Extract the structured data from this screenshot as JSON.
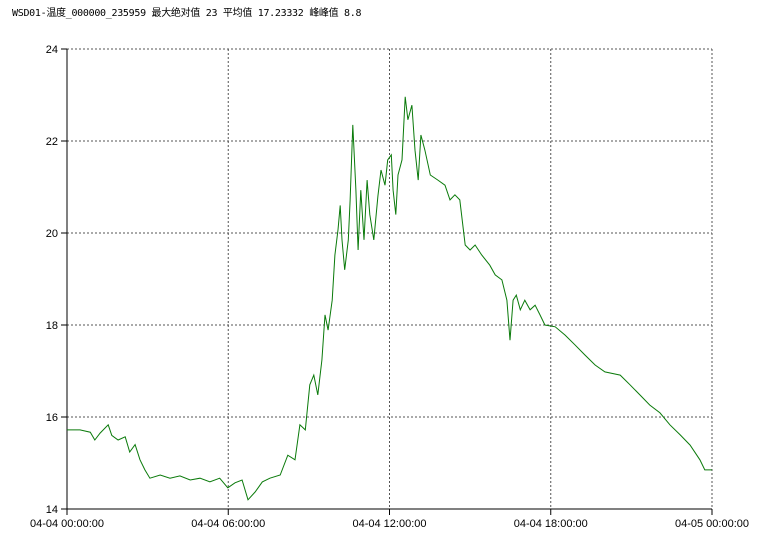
{
  "chart_data": {
    "type": "line",
    "title": "WSD01-温度_000000_235959 最大绝对值 23 平均值 17.23332 峰峰值 8.8",
    "date": "04-04",
    "xlabel": "",
    "ylabel": "",
    "ylim": [
      14,
      24
    ],
    "xlim": [
      "04-04 00:00:00",
      "04-05 00:00:00"
    ],
    "yticks": [
      "24",
      "22",
      "20",
      "18",
      "16",
      "14"
    ],
    "xticks": [
      "04-04 00:00:00",
      "04-04 06:00:00",
      "04-04 12:00:00",
      "04-04 18:00:00",
      "04-05 00:00:00"
    ],
    "grid": true,
    "line_color": "#0a7a0a",
    "series": [
      {
        "x": [
          "00:00",
          "00:29",
          "00:52",
          "01:02",
          "01:14",
          "01:32",
          "01:40",
          "01:54",
          "02:10",
          "02:20",
          "02:32",
          "02:43",
          "02:54",
          "03:05",
          "03:28",
          "03:50",
          "04:12",
          "04:35",
          "04:57",
          "05:19",
          "05:41",
          "05:59",
          "06:15",
          "06:31",
          "06:44",
          "07:00",
          "07:16",
          "07:33",
          "07:56",
          "08:13",
          "08:29",
          "08:40",
          "08:52",
          "09:02",
          "09:11",
          "09:20",
          "09:29",
          "09:36",
          "09:43",
          "09:52",
          "09:58",
          "10:05",
          "10:10",
          "10:14",
          "10:20",
          "10:28",
          "10:32",
          "10:38",
          "10:45",
          "10:50",
          "10:56",
          "11:03",
          "11:10",
          "11:16",
          "11:25",
          "11:34",
          "11:41",
          "11:50",
          "11:56",
          "12:04",
          "12:08",
          "12:14",
          "12:19",
          "12:28",
          "12:35",
          "12:41",
          "12:50",
          "12:57",
          "13:04",
          "13:10",
          "13:19",
          "13:31",
          "13:48",
          "14:04",
          "14:15",
          "14:26",
          "14:37",
          "14:49",
          "15:00",
          "15:11",
          "15:26",
          "15:44",
          "15:56",
          "16:11",
          "16:22",
          "16:29",
          "16:36",
          "16:43",
          "16:52",
          "17:02",
          "17:14",
          "17:25",
          "17:36",
          "17:47",
          "18:10",
          "18:32",
          "18:54",
          "19:16",
          "19:39",
          "20:01",
          "20:35",
          "20:57",
          "21:19",
          "21:41",
          "22:04",
          "22:26",
          "22:49",
          "23:11",
          "23:33",
          "23:44",
          "23:59"
        ],
        "y": [
          15.72,
          15.72,
          15.67,
          15.5,
          15.65,
          15.83,
          15.6,
          15.5,
          15.57,
          15.24,
          15.4,
          15.07,
          14.85,
          14.67,
          14.74,
          14.67,
          14.72,
          14.63,
          14.67,
          14.59,
          14.67,
          14.46,
          14.57,
          14.63,
          14.2,
          14.37,
          14.59,
          14.67,
          14.74,
          15.17,
          15.07,
          15.83,
          15.72,
          16.7,
          16.91,
          16.48,
          17.24,
          18.22,
          17.89,
          18.54,
          19.52,
          20.07,
          20.6,
          19.85,
          19.2,
          19.85,
          20.7,
          22.35,
          20.93,
          19.63,
          20.93,
          19.85,
          21.15,
          20.4,
          19.85,
          20.8,
          21.37,
          21.04,
          21.59,
          21.7,
          20.93,
          20.4,
          21.26,
          21.59,
          22.96,
          22.46,
          22.78,
          21.8,
          21.15,
          22.13,
          21.8,
          21.26,
          21.15,
          21.04,
          20.72,
          20.83,
          20.72,
          19.74,
          19.63,
          19.74,
          19.52,
          19.3,
          19.09,
          18.98,
          18.54,
          17.67,
          18.54,
          18.65,
          18.33,
          18.54,
          18.33,
          18.43,
          18.22,
          18.0,
          17.96,
          17.78,
          17.57,
          17.35,
          17.13,
          16.98,
          16.91,
          16.7,
          16.48,
          16.26,
          16.09,
          15.83,
          15.61,
          15.39,
          15.07,
          14.85,
          14.85
        ]
      }
    ]
  }
}
